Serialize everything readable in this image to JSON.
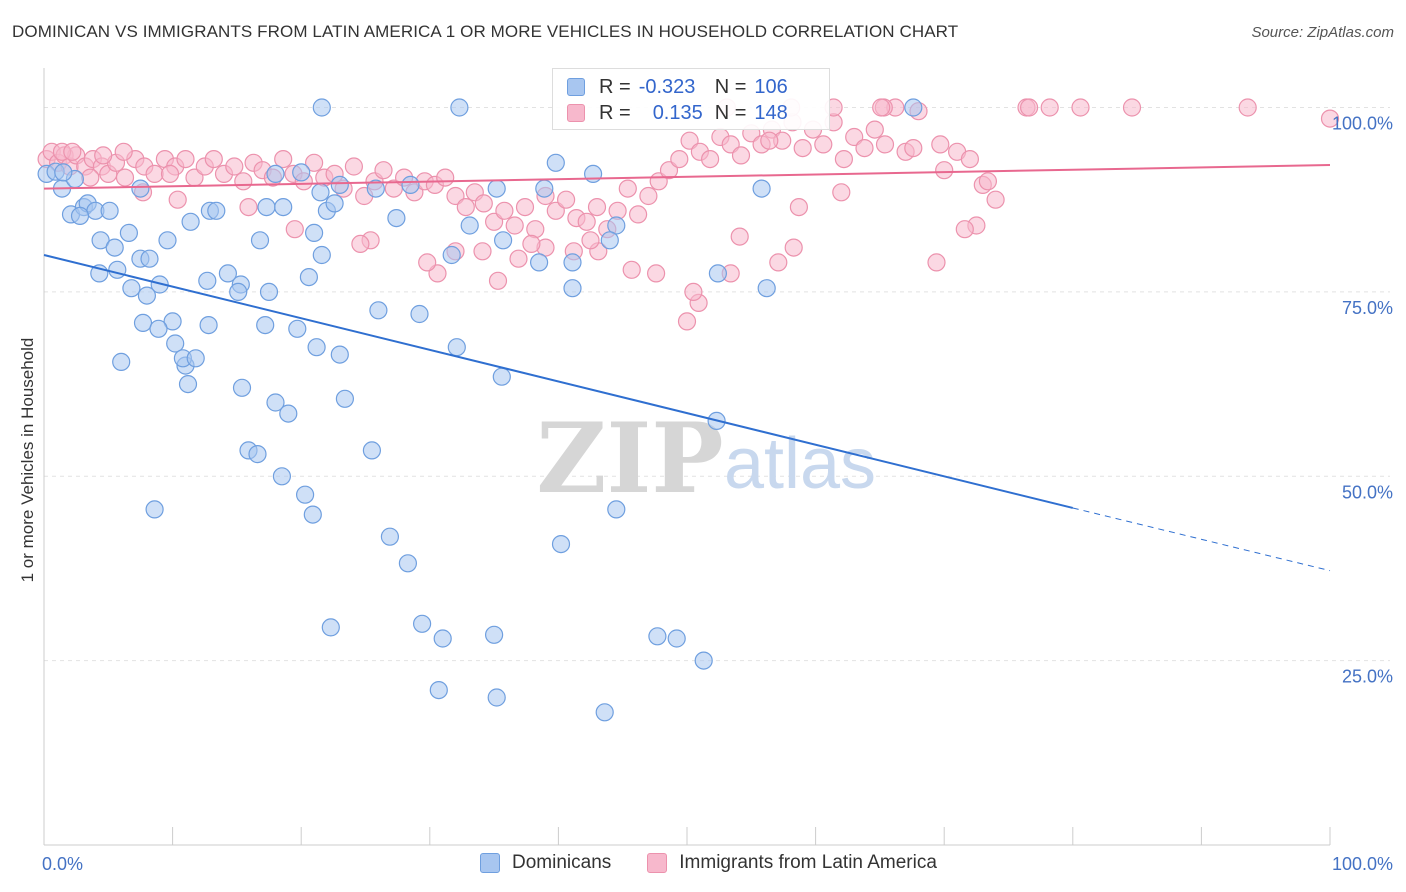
{
  "header": {
    "title": "DOMINICAN VS IMMIGRANTS FROM LATIN AMERICA 1 OR MORE VEHICLES IN HOUSEHOLD CORRELATION CHART",
    "source": "Source: ZipAtlas.com"
  },
  "watermark": {
    "zip": "ZIP",
    "atlas": "atlas"
  },
  "legend": {
    "r_label": "R =",
    "n_label": "N =",
    "rows": [
      {
        "r": "-0.323",
        "n": "106",
        "swatch_color": "#a8c6f0"
      },
      {
        "r": "0.135",
        "n": "148",
        "swatch_color": "#f7b8cc"
      }
    ]
  },
  "colors": {
    "blue_point": "#a8c6f0",
    "blue_stroke": "#6f9fdf",
    "blue_line": "#2f6fd0",
    "pink_point": "#f7b8cc",
    "pink_stroke": "#ec92ad",
    "pink_line": "#e8688f",
    "tick_label": "#4472c4",
    "grid": "#e2e2e2"
  },
  "chart_data": {
    "type": "scatter",
    "title": "DOMINICAN VS IMMIGRANTS FROM LATIN AMERICA 1 OR MORE VEHICLES IN HOUSEHOLD CORRELATION CHART",
    "xlabel": "",
    "ylabel": "1 or more Vehicles in Household",
    "xlim": [
      0,
      100
    ],
    "ylim": [
      0,
      104
    ],
    "x_tick_labels": [
      "0.0%",
      "100.0%"
    ],
    "y_tick_labels": [
      "25.0%",
      "50.0%",
      "75.0%",
      "100.0%"
    ],
    "y_ticks": [
      25,
      50,
      75,
      100
    ],
    "grid": true,
    "legend_position": "bottom",
    "series": [
      {
        "name": "Dominicans",
        "r": -0.323,
        "n": 106,
        "trend": {
          "x0": 0,
          "y0": 80.0,
          "x1": 80,
          "y1": 45.7,
          "dashed_to_x": 100,
          "dashed_y1": 37.2
        },
        "points": [
          [
            21.6,
            100
          ],
          [
            32.3,
            100
          ],
          [
            67.6,
            100
          ],
          [
            0.2,
            91
          ],
          [
            0.9,
            91.3
          ],
          [
            1.4,
            89
          ],
          [
            2.4,
            90.3
          ],
          [
            1.5,
            91.2
          ],
          [
            2.1,
            85.5
          ],
          [
            3.1,
            86.5
          ],
          [
            3.4,
            87
          ],
          [
            4.0,
            86
          ],
          [
            5.1,
            86
          ],
          [
            2.8,
            85.3
          ],
          [
            7.5,
            89
          ],
          [
            9.6,
            82
          ],
          [
            6.6,
            83
          ],
          [
            4.4,
            82
          ],
          [
            5.5,
            81
          ],
          [
            11.4,
            84.5
          ],
          [
            12.9,
            86
          ],
          [
            13.4,
            86
          ],
          [
            16.8,
            82
          ],
          [
            21.6,
            80
          ],
          [
            20.6,
            77
          ],
          [
            14.3,
            77.5
          ],
          [
            15.3,
            76
          ],
          [
            12.7,
            76.5
          ],
          [
            15.1,
            75
          ],
          [
            17.5,
            75
          ],
          [
            7.5,
            79.5
          ],
          [
            8.2,
            79.5
          ],
          [
            4.3,
            77.5
          ],
          [
            5.7,
            78
          ],
          [
            6.8,
            75.5
          ],
          [
            9.0,
            76
          ],
          [
            8.0,
            74.5
          ],
          [
            10.0,
            71
          ],
          [
            12.8,
            70.5
          ],
          [
            17.2,
            70.5
          ],
          [
            19.7,
            70
          ],
          [
            7.7,
            70.8
          ],
          [
            8.9,
            70
          ],
          [
            10.2,
            68
          ],
          [
            21.2,
            67.5
          ],
          [
            23.0,
            66.5
          ],
          [
            26.0,
            72.5
          ],
          [
            29.2,
            72
          ],
          [
            32.1,
            67.5
          ],
          [
            11.0,
            65
          ],
          [
            10.8,
            66
          ],
          [
            11.8,
            66
          ],
          [
            6.0,
            65.5
          ],
          [
            11.2,
            62.5
          ],
          [
            15.4,
            62
          ],
          [
            18.0,
            60
          ],
          [
            19.0,
            58.5
          ],
          [
            23.4,
            60.5
          ],
          [
            15.9,
            53.5
          ],
          [
            16.6,
            53
          ],
          [
            18.5,
            50
          ],
          [
            25.5,
            53.5
          ],
          [
            8.6,
            45.5
          ],
          [
            20.3,
            47.5
          ],
          [
            20.9,
            44.8
          ],
          [
            26.9,
            41.8
          ],
          [
            28.3,
            38.2
          ],
          [
            40.2,
            40.8
          ],
          [
            44.5,
            45.5
          ],
          [
            22.3,
            29.5
          ],
          [
            29.4,
            30
          ],
          [
            31.0,
            28
          ],
          [
            35.0,
            28.5
          ],
          [
            47.7,
            28.3
          ],
          [
            49.2,
            28
          ],
          [
            51.3,
            25
          ],
          [
            30.7,
            21
          ],
          [
            35.2,
            20
          ],
          [
            43.6,
            18
          ],
          [
            35.6,
            63.5
          ],
          [
            52.3,
            57.5
          ],
          [
            31.7,
            80
          ],
          [
            38.5,
            79
          ],
          [
            41.1,
            79
          ],
          [
            41.1,
            75.5
          ],
          [
            35.7,
            82
          ],
          [
            33.1,
            84
          ],
          [
            27.4,
            85
          ],
          [
            28.5,
            89.5
          ],
          [
            35.2,
            89
          ],
          [
            38.9,
            89
          ],
          [
            42.7,
            91
          ],
          [
            39.8,
            92.5
          ],
          [
            44.5,
            84
          ],
          [
            44.0,
            82
          ],
          [
            52.4,
            77.5
          ],
          [
            56.2,
            75.5
          ],
          [
            55.8,
            89
          ],
          [
            22.0,
            86
          ],
          [
            23.0,
            89.5
          ],
          [
            25.8,
            89
          ],
          [
            17.3,
            86.5
          ],
          [
            18.6,
            86.5
          ],
          [
            18.0,
            91
          ],
          [
            20.0,
            91.2
          ],
          [
            21.5,
            88.5
          ],
          [
            22.6,
            87
          ],
          [
            21.0,
            83
          ]
        ]
      },
      {
        "name": "Immigrants from Latin America",
        "r": 0.135,
        "n": 148,
        "trend": {
          "x0": 0,
          "y0": 89.0,
          "x1": 100,
          "y1": 92.2
        },
        "points": [
          [
            0.2,
            93
          ],
          [
            0.6,
            94
          ],
          [
            1.1,
            92.5
          ],
          [
            1.6,
            93.5
          ],
          [
            2.0,
            92
          ],
          [
            2.5,
            93.5
          ],
          [
            3.2,
            92
          ],
          [
            3.8,
            93
          ],
          [
            4.5,
            92
          ],
          [
            5.0,
            91
          ],
          [
            5.6,
            92.5
          ],
          [
            6.3,
            90.5
          ],
          [
            7.1,
            93
          ],
          [
            7.8,
            92
          ],
          [
            8.6,
            91
          ],
          [
            9.4,
            93
          ],
          [
            10.2,
            92
          ],
          [
            11.0,
            93
          ],
          [
            11.7,
            90.5
          ],
          [
            12.5,
            92
          ],
          [
            13.2,
            93
          ],
          [
            14.0,
            91
          ],
          [
            14.8,
            92
          ],
          [
            15.5,
            90
          ],
          [
            16.3,
            92.5
          ],
          [
            17.0,
            91.5
          ],
          [
            17.8,
            90.5
          ],
          [
            18.6,
            93
          ],
          [
            19.4,
            91
          ],
          [
            20.2,
            90
          ],
          [
            21.0,
            92.5
          ],
          [
            21.8,
            90.5
          ],
          [
            22.6,
            91
          ],
          [
            23.3,
            89
          ],
          [
            24.1,
            92
          ],
          [
            24.9,
            88
          ],
          [
            25.7,
            90
          ],
          [
            26.4,
            91.5
          ],
          [
            27.2,
            89
          ],
          [
            28.0,
            90.5
          ],
          [
            28.8,
            88.5
          ],
          [
            29.6,
            90
          ],
          [
            30.4,
            89.5
          ],
          [
            31.2,
            90.5
          ],
          [
            32.0,
            88
          ],
          [
            32.8,
            86.5
          ],
          [
            33.5,
            88.5
          ],
          [
            34.2,
            87
          ],
          [
            35.0,
            84.5
          ],
          [
            35.8,
            86
          ],
          [
            36.6,
            84
          ],
          [
            37.4,
            86.5
          ],
          [
            38.2,
            83.5
          ],
          [
            39.0,
            88
          ],
          [
            39.8,
            86
          ],
          [
            40.6,
            87.5
          ],
          [
            41.4,
            85
          ],
          [
            42.2,
            84.5
          ],
          [
            43.0,
            86.5
          ],
          [
            43.8,
            83.5
          ],
          [
            44.6,
            86
          ],
          [
            45.4,
            89
          ],
          [
            46.2,
            85.5
          ],
          [
            47.0,
            88
          ],
          [
            47.8,
            90
          ],
          [
            48.6,
            91.5
          ],
          [
            49.4,
            93
          ],
          [
            50.2,
            95.5
          ],
          [
            51.0,
            94
          ],
          [
            51.8,
            93
          ],
          [
            52.6,
            96
          ],
          [
            53.4,
            95
          ],
          [
            54.2,
            93.5
          ],
          [
            55.0,
            96.5
          ],
          [
            55.8,
            95
          ],
          [
            56.6,
            97
          ],
          [
            57.4,
            95.5
          ],
          [
            58.2,
            98
          ],
          [
            59.0,
            94.5
          ],
          [
            59.8,
            97
          ],
          [
            60.6,
            95
          ],
          [
            61.4,
            98
          ],
          [
            62.2,
            93
          ],
          [
            63.0,
            96
          ],
          [
            63.8,
            94.5
          ],
          [
            64.6,
            97
          ],
          [
            65.4,
            95
          ],
          [
            66.2,
            100
          ],
          [
            67.0,
            94
          ],
          [
            68.0,
            99.5
          ],
          [
            67.6,
            94.5
          ],
          [
            69.7,
            95
          ],
          [
            70.0,
            91.5
          ],
          [
            71.0,
            94
          ],
          [
            72.0,
            93
          ],
          [
            73.0,
            89.5
          ],
          [
            74.0,
            87.5
          ],
          [
            76.4,
            100
          ],
          [
            78.2,
            100
          ],
          [
            80.6,
            100
          ],
          [
            84.6,
            100
          ],
          [
            100.0,
            98.5
          ],
          [
            93.6,
            100
          ],
          [
            65.3,
            100
          ],
          [
            53.1,
            100
          ],
          [
            56.4,
            95.5
          ],
          [
            58.1,
            100
          ],
          [
            61.4,
            100
          ],
          [
            65.1,
            100
          ],
          [
            76.6,
            100
          ],
          [
            72.5,
            84
          ],
          [
            71.6,
            83.5
          ],
          [
            69.4,
            79
          ],
          [
            73.4,
            90
          ],
          [
            62.0,
            88.5
          ],
          [
            58.7,
            86.5
          ],
          [
            58.3,
            81
          ],
          [
            57.1,
            79
          ],
          [
            54.1,
            82.5
          ],
          [
            53.4,
            77.5
          ],
          [
            50.9,
            73.5
          ],
          [
            50.5,
            75
          ],
          [
            50.0,
            71
          ],
          [
            47.6,
            77.5
          ],
          [
            45.7,
            78
          ],
          [
            43.1,
            80.5
          ],
          [
            42.5,
            82
          ],
          [
            41.2,
            80.5
          ],
          [
            39.0,
            81
          ],
          [
            36.9,
            79.5
          ],
          [
            34.1,
            80.5
          ],
          [
            35.3,
            76.5
          ],
          [
            37.9,
            81.5
          ],
          [
            32.0,
            80.5
          ],
          [
            30.6,
            77.5
          ],
          [
            29.8,
            79
          ],
          [
            25.4,
            82
          ],
          [
            24.6,
            81.5
          ],
          [
            19.5,
            83.5
          ],
          [
            15.9,
            86.5
          ],
          [
            10.4,
            87.5
          ],
          [
            7.7,
            88.5
          ],
          [
            9.8,
            91
          ],
          [
            3.6,
            90.5
          ],
          [
            1.4,
            94
          ],
          [
            2.2,
            94
          ],
          [
            4.6,
            93.5
          ],
          [
            6.2,
            94
          ]
        ]
      }
    ]
  },
  "bottom_legend": {
    "items": [
      {
        "label": "Dominicans",
        "color": "#a8c6f0",
        "stroke": "#6f9fdf"
      },
      {
        "label": "Immigrants from Latin America",
        "color": "#f7b8cc",
        "stroke": "#ec92ad"
      }
    ]
  }
}
